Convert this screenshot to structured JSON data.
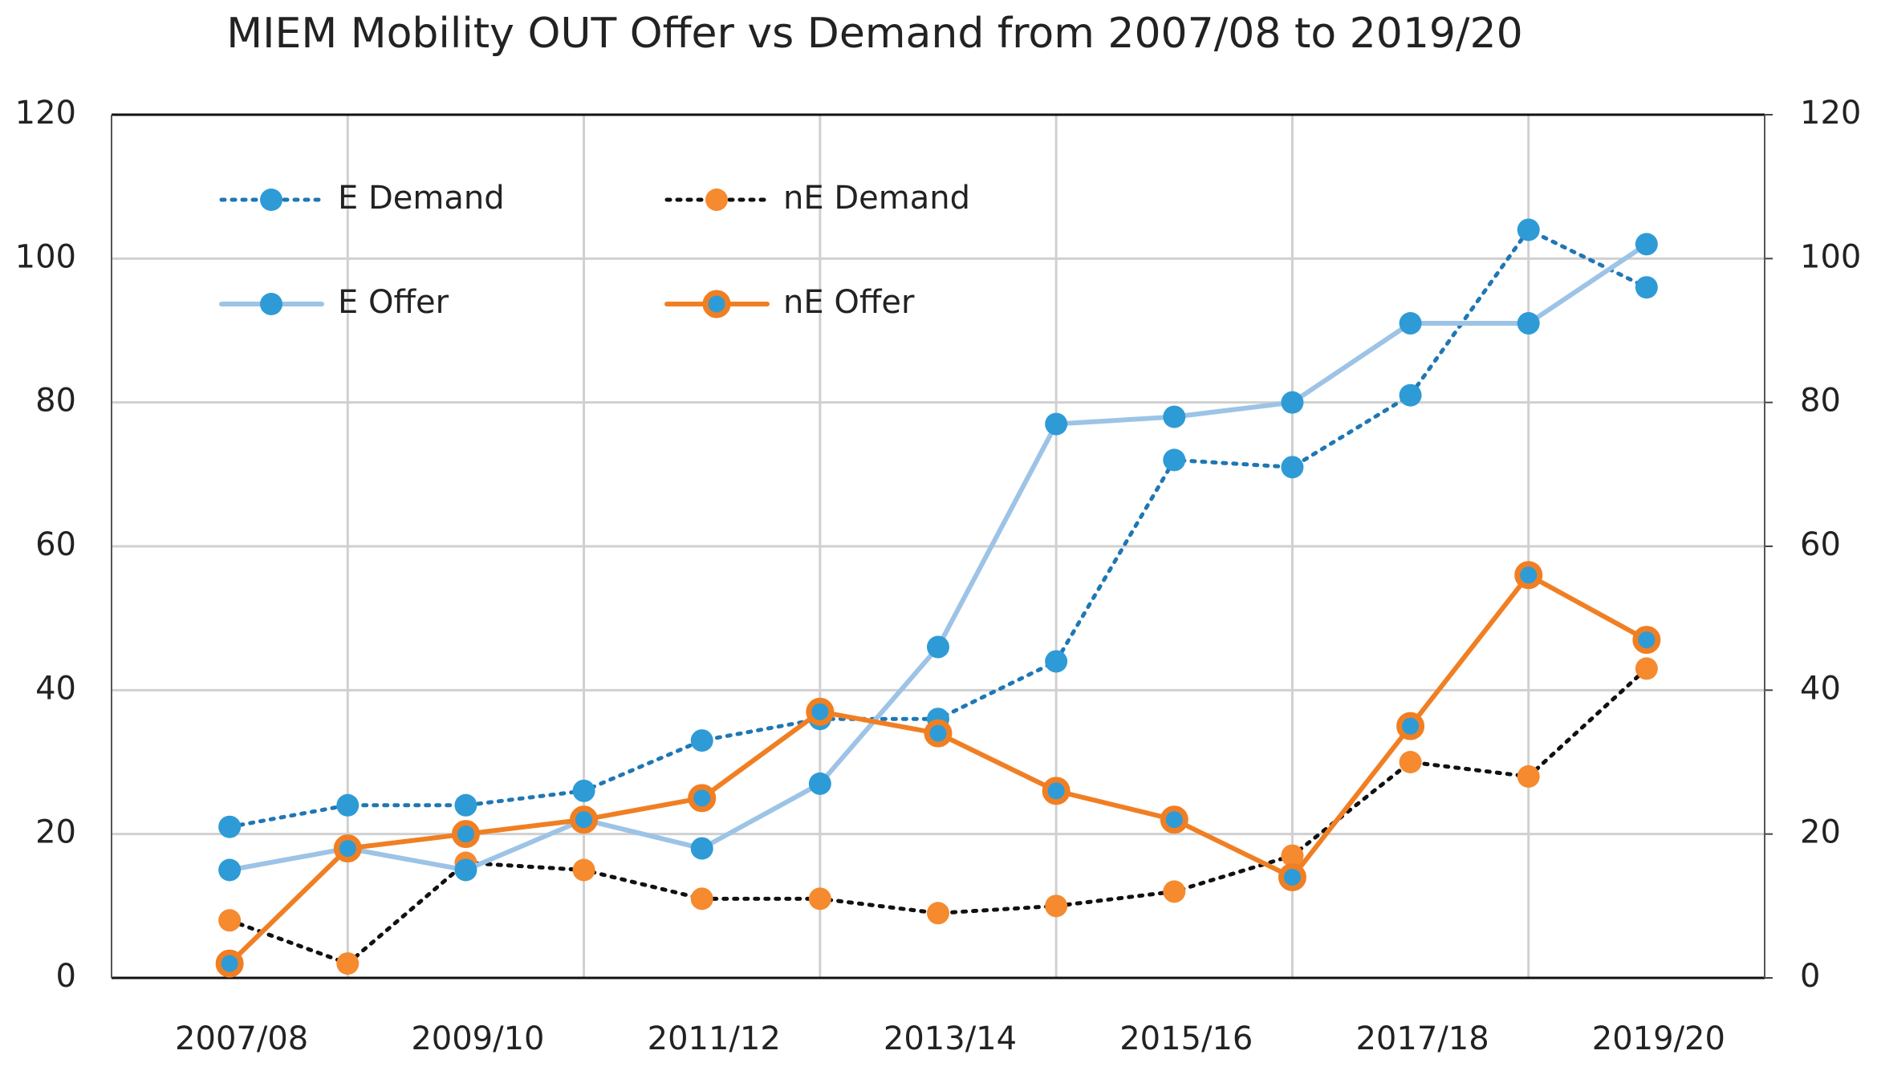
{
  "chart_data": {
    "type": "line",
    "title": "MIEM Mobility OUT  Offer vs Demand from 2007/08 to 2019/20",
    "categories": [
      "2007/08",
      null,
      "2009/10",
      null,
      "2011/12",
      null,
      "2013/14",
      null,
      "2015/16",
      null,
      "2017/18",
      null,
      "2019/20"
    ],
    "series": [
      {
        "name": "E Demand",
        "color": "#1F77B4",
        "marker_color": "#2E9BD6",
        "style": "dotted",
        "values": [
          21,
          24,
          24,
          26,
          33,
          36,
          36,
          44,
          72,
          71,
          81,
          104,
          96
        ]
      },
      {
        "name": "nE Demand",
        "color": "#111111",
        "marker_color": "#F58A2E",
        "style": "dotted",
        "values": [
          8,
          2,
          16,
          15,
          11,
          11,
          9,
          10,
          12,
          17,
          30,
          28,
          43
        ]
      },
      {
        "name": "E Offer",
        "color": "#9DC3E6",
        "marker_color": "#2E9BD6",
        "style": "solid",
        "values": [
          15,
          18,
          15,
          22,
          18,
          27,
          46,
          77,
          78,
          80,
          91,
          91,
          102
        ]
      },
      {
        "name": "nE Offer",
        "color": "#F07F23",
        "marker_color": "#2E9BD6",
        "style": "solid",
        "values": [
          2,
          18,
          20,
          22,
          25,
          37,
          34,
          26,
          22,
          14,
          35,
          56,
          47
        ]
      }
    ],
    "ylim": [
      0,
      120
    ],
    "yticks": [
      0,
      20,
      40,
      60,
      80,
      100,
      120
    ],
    "y2lim": [
      0,
      120
    ],
    "y2ticks": [
      0,
      20,
      40,
      60,
      80,
      100,
      120
    ],
    "grid": true
  }
}
